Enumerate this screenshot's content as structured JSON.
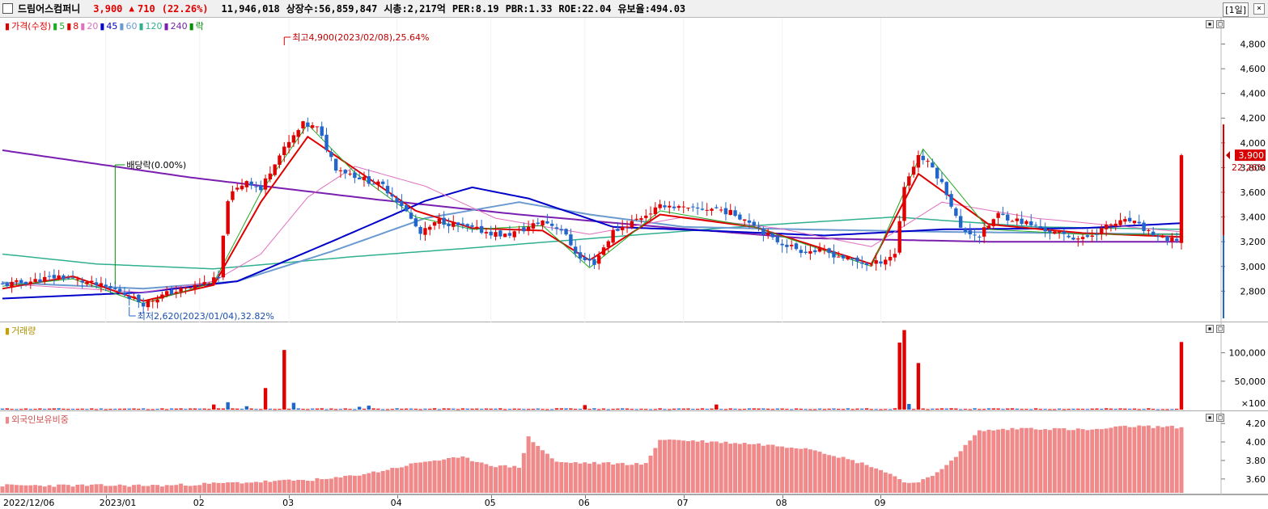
{
  "header": {
    "name": "드림어스컴퍼니",
    "price": "3,900",
    "change": "710",
    "change_pct": "(22.26%)",
    "volume": "11,946,018",
    "shares": "상장수:56,859,847",
    "market_cap": "시총:2,217억",
    "per": "PER:8.19",
    "pbr": "PBR:1.33",
    "roe": "ROE:22.04",
    "float": "유보율:494.03",
    "period": "[1일]",
    "close_symbol": "×"
  },
  "price_panel": {
    "legend": [
      {
        "label": "가격(수정)",
        "color": "#e00000"
      },
      {
        "label": "5",
        "color": "#22aa22"
      },
      {
        "label": "8",
        "color": "#e00000"
      },
      {
        "label": "20",
        "color": "#e070c0"
      },
      {
        "label": "45",
        "color": "#0000c8"
      },
      {
        "label": "60",
        "color": "#6a9ad0"
      },
      {
        "label": "120",
        "color": "#30b090"
      },
      {
        "label": "240",
        "color": "#7a1fb0"
      },
      {
        "label": "락",
        "color": "#009000"
      }
    ],
    "high_label": "최고4,900(2023/02/08),25.64%",
    "low_label": "최저2,620(2023/01/04),32.82%",
    "dividend_label": "배당락(0.00%)",
    "price_tag": "3,900",
    "pct_tag": "22.26%"
  },
  "volume_panel": {
    "legend": "거래량"
  },
  "foreign_panel": {
    "legend": "외국인보유비중"
  },
  "x_axis": {
    "labels": [
      "2022/12/06",
      "2023/01",
      "02",
      "03",
      "04",
      "05",
      "06",
      "07",
      "08",
      "09"
    ]
  },
  "colors": {
    "up": "#e00000",
    "down": "#2266cc",
    "foreign_bar": "#f08a8a"
  },
  "chart_data": [
    {
      "type": "candlestick",
      "title": "가격(수정)",
      "y_ticks": [
        2800,
        3000,
        3200,
        3400,
        3600,
        3800,
        4000,
        4200,
        4400,
        4600,
        4800
      ],
      "y_tick_labels": [
        "2,800",
        "3,000",
        "3,200",
        "3,400",
        "3,600",
        "3,800",
        "4,000",
        "4,200",
        "4,400",
        "4,600",
        "4,800"
      ],
      "ylim": [
        2580,
        4960
      ],
      "anchors": [
        [
          0,
          2850
        ],
        [
          6,
          2880
        ],
        [
          12,
          2920
        ],
        [
          18,
          2870
        ],
        [
          25,
          2800
        ],
        [
          30,
          2700
        ],
        [
          35,
          2780
        ],
        [
          40,
          2830
        ],
        [
          46,
          2900
        ],
        [
          48,
          3550
        ],
        [
          52,
          3700
        ],
        [
          55,
          3620
        ],
        [
          58,
          3850
        ],
        [
          60,
          3950
        ],
        [
          64,
          4150
        ],
        [
          67,
          4120
        ],
        [
          71,
          3800
        ],
        [
          76,
          3720
        ],
        [
          81,
          3650
        ],
        [
          85,
          3500
        ],
        [
          89,
          3260
        ],
        [
          93,
          3370
        ],
        [
          97,
          3330
        ],
        [
          103,
          3280
        ],
        [
          107,
          3250
        ],
        [
          111,
          3300
        ],
        [
          115,
          3370
        ],
        [
          119,
          3300
        ],
        [
          123,
          3060
        ],
        [
          126,
          3030
        ],
        [
          130,
          3280
        ],
        [
          136,
          3400
        ],
        [
          141,
          3500
        ],
        [
          146,
          3460
        ],
        [
          152,
          3470
        ],
        [
          156,
          3420
        ],
        [
          160,
          3350
        ],
        [
          164,
          3220
        ],
        [
          170,
          3130
        ],
        [
          175,
          3120
        ],
        [
          180,
          3060
        ],
        [
          185,
          3010
        ],
        [
          190,
          3100
        ],
        [
          192,
          3650
        ],
        [
          195,
          3900
        ],
        [
          198,
          3800
        ],
        [
          201,
          3600
        ],
        [
          204,
          3300
        ],
        [
          208,
          3250
        ],
        [
          212,
          3420
        ],
        [
          218,
          3350
        ],
        [
          224,
          3270
        ],
        [
          230,
          3220
        ],
        [
          236,
          3340
        ],
        [
          240,
          3370
        ],
        [
          244,
          3280
        ],
        [
          248,
          3200
        ],
        [
          250,
          3220
        ],
        [
          251,
          3900
        ]
      ],
      "n_candles": 252,
      "ma_series": [
        {
          "name": "240",
          "color": "#7a1fb0",
          "width": 2,
          "points": [
            [
              0,
              3940
            ],
            [
              40,
              3720
            ],
            [
              80,
              3540
            ],
            [
              110,
              3420
            ],
            [
              140,
              3320
            ],
            [
              170,
              3230
            ],
            [
              210,
              3200
            ],
            [
              251,
              3200
            ]
          ]
        },
        {
          "name": "120",
          "color": "#30b090",
          "width": 1.5,
          "points": [
            [
              0,
              3100
            ],
            [
              20,
              3020
            ],
            [
              45,
              2980
            ],
            [
              75,
              3080
            ],
            [
              100,
              3150
            ],
            [
              130,
              3240
            ],
            [
              160,
              3330
            ],
            [
              190,
              3400
            ],
            [
              220,
              3320
            ],
            [
              251,
              3300
            ]
          ]
        },
        {
          "name": "60",
          "color": "#6a9ad0",
          "width": 2,
          "points": [
            [
              0,
              2870
            ],
            [
              30,
              2820
            ],
            [
              50,
              2880
            ],
            [
              70,
              3120
            ],
            [
              90,
              3390
            ],
            [
              110,
              3520
            ],
            [
              125,
              3420
            ],
            [
              145,
              3320
            ],
            [
              170,
              3300
            ],
            [
              200,
              3280
            ],
            [
              251,
              3260
            ]
          ]
        },
        {
          "name": "45",
          "color": "#0000c8",
          "width": 2,
          "points": [
            [
              0,
              2740
            ],
            [
              30,
              2790
            ],
            [
              50,
              2880
            ],
            [
              70,
              3200
            ],
            [
              90,
              3530
            ],
            [
              100,
              3640
            ],
            [
              112,
              3550
            ],
            [
              130,
              3320
            ],
            [
              150,
              3290
            ],
            [
              175,
              3250
            ],
            [
              200,
              3300
            ],
            [
              230,
              3310
            ],
            [
              251,
              3350
            ]
          ]
        },
        {
          "name": "20",
          "color": "#e070c0",
          "width": 1,
          "points": [
            [
              0,
              2860
            ],
            [
              30,
              2790
            ],
            [
              45,
              2880
            ],
            [
              55,
              3100
            ],
            [
              65,
              3560
            ],
            [
              75,
              3810
            ],
            [
              90,
              3650
            ],
            [
              105,
              3390
            ],
            [
              125,
              3260
            ],
            [
              145,
              3400
            ],
            [
              165,
              3310
            ],
            [
              185,
              3160
            ],
            [
              200,
              3520
            ],
            [
              220,
              3390
            ],
            [
              251,
              3280
            ]
          ]
        },
        {
          "name": "8",
          "color": "#e00000",
          "width": 2,
          "points": [
            [
              0,
              2820
            ],
            [
              15,
              2920
            ],
            [
              30,
              2720
            ],
            [
              45,
              2850
            ],
            [
              55,
              3520
            ],
            [
              65,
              4050
            ],
            [
              75,
              3790
            ],
            [
              88,
              3450
            ],
            [
              100,
              3310
            ],
            [
              115,
              3290
            ],
            [
              125,
              3050
            ],
            [
              140,
              3420
            ],
            [
              160,
              3320
            ],
            [
              185,
              3020
            ],
            [
              195,
              3750
            ],
            [
              210,
              3340
            ],
            [
              230,
              3270
            ],
            [
              250,
              3240
            ]
          ]
        },
        {
          "name": "5",
          "color": "#22aa22",
          "width": 1,
          "points": [
            [
              0,
              2840
            ],
            [
              15,
              2900
            ],
            [
              30,
              2700
            ],
            [
              45,
              2870
            ],
            [
              55,
              3600
            ],
            [
              65,
              4150
            ],
            [
              75,
              3760
            ],
            [
              88,
              3400
            ],
            [
              100,
              3300
            ],
            [
              115,
              3330
            ],
            [
              125,
              2990
            ],
            [
              140,
              3450
            ],
            [
              160,
              3320
            ],
            [
              185,
              3000
            ],
            [
              196,
              3950
            ],
            [
              210,
              3300
            ],
            [
              230,
              3260
            ],
            [
              250,
              3260
            ]
          ]
        }
      ]
    },
    {
      "type": "bar",
      "title": "거래량",
      "y_ticks": [
        100000,
        50000
      ],
      "y_tick_labels": [
        "100,000",
        "50,000",
        "×100"
      ],
      "ylim": [
        0,
        145000
      ],
      "spikes": [
        [
          45,
          9000
        ],
        [
          48,
          13000
        ],
        [
          52,
          6000
        ],
        [
          56,
          38000
        ],
        [
          60,
          105000
        ],
        [
          62,
          12000
        ],
        [
          76,
          5000
        ],
        [
          78,
          7000
        ],
        [
          124,
          8000
        ],
        [
          152,
          9000
        ],
        [
          191,
          118000
        ],
        [
          192,
          140000
        ],
        [
          193,
          10000
        ],
        [
          195,
          82000
        ],
        [
          251,
          119000
        ]
      ]
    },
    {
      "type": "bar",
      "title": "외국인보유비중",
      "y_ticks": [
        3.6,
        3.8,
        4.0,
        4.2
      ],
      "y_tick_labels": [
        "3.60",
        "3.80",
        "4.00",
        "4.20"
      ],
      "ylim": [
        3.45,
        4.28
      ],
      "anchors": [
        [
          0,
          3.53
        ],
        [
          35,
          3.53
        ],
        [
          70,
          3.6
        ],
        [
          80,
          3.68
        ],
        [
          90,
          3.79
        ],
        [
          98,
          3.83
        ],
        [
          105,
          3.74
        ],
        [
          110,
          3.73
        ],
        [
          112,
          4.05
        ],
        [
          118,
          3.78
        ],
        [
          137,
          3.76
        ],
        [
          140,
          4.03
        ],
        [
          160,
          3.98
        ],
        [
          172,
          3.93
        ],
        [
          185,
          3.74
        ],
        [
          190,
          3.63
        ],
        [
          193,
          3.55
        ],
        [
          198,
          3.62
        ],
        [
          203,
          3.85
        ],
        [
          208,
          4.12
        ],
        [
          218,
          4.15
        ],
        [
          232,
          4.13
        ],
        [
          240,
          4.17
        ],
        [
          251,
          4.16
        ]
      ]
    }
  ]
}
